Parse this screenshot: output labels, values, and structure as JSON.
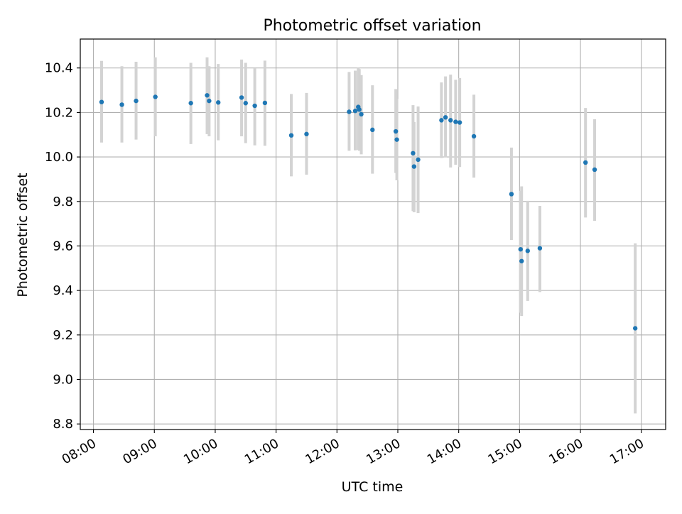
{
  "chart_data": {
    "type": "scatter",
    "title": "Photometric offset variation",
    "xlabel": "UTC time",
    "ylabel": "Photometric offset",
    "x_axis_kind": "time",
    "xlim": [
      "07:47",
      "17:24"
    ],
    "ylim": [
      8.775,
      10.53
    ],
    "xticks": [
      "08:00",
      "09:00",
      "10:00",
      "11:00",
      "12:00",
      "13:00",
      "14:00",
      "15:00",
      "16:00",
      "17:00"
    ],
    "yticks": [
      "8.8",
      "9.0",
      "9.2",
      "9.4",
      "9.6",
      "9.8",
      "10.0",
      "10.2",
      "10.4"
    ],
    "grid": true,
    "point_color": "#1f77b4",
    "errorbar_color": "#d3d3d3",
    "series": [
      {
        "points": [
          {
            "x": "08:08",
            "y": 10.247,
            "low": 10.065,
            "high": 10.432
          },
          {
            "x": "08:28",
            "y": 10.235,
            "low": 10.065,
            "high": 10.408
          },
          {
            "x": "08:42",
            "y": 10.252,
            "low": 10.078,
            "high": 10.428
          },
          {
            "x": "09:01",
            "y": 10.27,
            "low": 10.093,
            "high": 10.448
          },
          {
            "x": "09:36",
            "y": 10.242,
            "low": 10.058,
            "high": 10.423
          },
          {
            "x": "09:52",
            "y": 10.277,
            "low": 10.103,
            "high": 10.448
          },
          {
            "x": "09:54",
            "y": 10.252,
            "low": 10.093,
            "high": 10.408
          },
          {
            "x": "10:03",
            "y": 10.245,
            "low": 10.075,
            "high": 10.418
          },
          {
            "x": "10:26",
            "y": 10.267,
            "low": 10.093,
            "high": 10.438
          },
          {
            "x": "10:30",
            "y": 10.242,
            "low": 10.062,
            "high": 10.423
          },
          {
            "x": "10:39",
            "y": 10.23,
            "low": 10.052,
            "high": 10.398
          },
          {
            "x": "10:49",
            "y": 10.243,
            "low": 10.05,
            "high": 10.433
          },
          {
            "x": "11:15",
            "y": 10.097,
            "low": 9.913,
            "high": 10.283
          },
          {
            "x": "11:30",
            "y": 10.103,
            "low": 9.92,
            "high": 10.288
          },
          {
            "x": "12:12",
            "y": 10.203,
            "low": 10.028,
            "high": 10.382
          },
          {
            "x": "12:18",
            "y": 10.207,
            "low": 10.03,
            "high": 10.388
          },
          {
            "x": "12:21",
            "y": 10.225,
            "low": 10.032,
            "high": 10.4
          },
          {
            "x": "12:22",
            "y": 10.213,
            "low": 10.028,
            "high": 10.395
          },
          {
            "x": "12:24",
            "y": 10.192,
            "low": 10.012,
            "high": 10.368
          },
          {
            "x": "12:35",
            "y": 10.122,
            "low": 9.925,
            "high": 10.322
          },
          {
            "x": "12:58",
            "y": 10.115,
            "low": 9.928,
            "high": 10.305
          },
          {
            "x": "12:59",
            "y": 10.078,
            "low": 9.895,
            "high": 10.262
          },
          {
            "x": "13:15",
            "y": 10.017,
            "low": 9.757,
            "high": 10.233
          },
          {
            "x": "13:16",
            "y": 9.957,
            "low": 9.752,
            "high": 10.157
          },
          {
            "x": "13:20",
            "y": 9.988,
            "low": 9.748,
            "high": 10.227
          },
          {
            "x": "13:43",
            "y": 10.165,
            "low": 9.995,
            "high": 10.335
          },
          {
            "x": "13:47",
            "y": 10.178,
            "low": 9.998,
            "high": 10.362
          },
          {
            "x": "13:52",
            "y": 10.165,
            "low": 9.953,
            "high": 10.37
          },
          {
            "x": "13:57",
            "y": 10.158,
            "low": 9.965,
            "high": 10.347
          },
          {
            "x": "14:01",
            "y": 10.155,
            "low": 9.955,
            "high": 10.355
          },
          {
            "x": "14:15",
            "y": 10.093,
            "low": 9.907,
            "high": 10.28
          },
          {
            "x": "14:52",
            "y": 9.833,
            "low": 9.627,
            "high": 10.042
          },
          {
            "x": "15:01",
            "y": 9.585,
            "low": 9.3,
            "high": 9.848
          },
          {
            "x": "15:02",
            "y": 9.532,
            "low": 9.285,
            "high": 9.868
          },
          {
            "x": "15:08",
            "y": 9.578,
            "low": 9.353,
            "high": 9.803
          },
          {
            "x": "15:20",
            "y": 9.59,
            "low": 9.393,
            "high": 9.78
          },
          {
            "x": "16:05",
            "y": 9.975,
            "low": 9.728,
            "high": 10.22
          },
          {
            "x": "16:14",
            "y": 9.943,
            "low": 9.713,
            "high": 10.17
          },
          {
            "x": "16:54",
            "y": 9.23,
            "low": 8.847,
            "high": 9.612
          }
        ]
      }
    ]
  }
}
